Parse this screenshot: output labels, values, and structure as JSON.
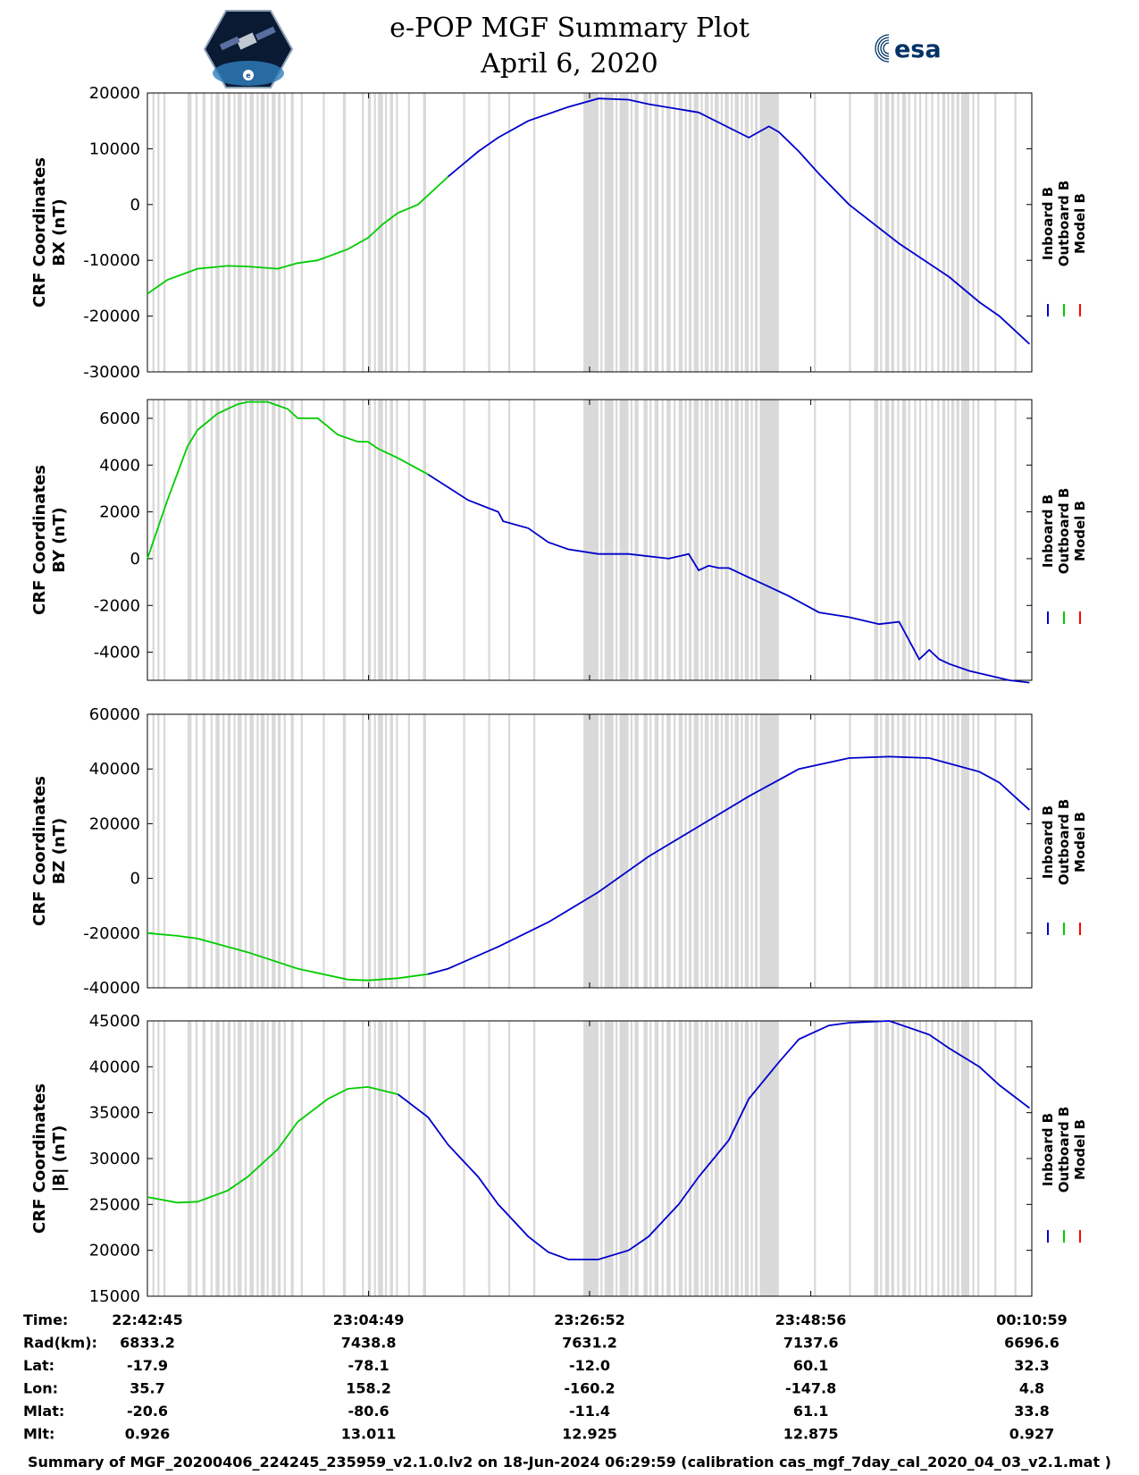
{
  "header": {
    "title_line1": "e-POP MGF Summary Plot",
    "title_line2": "April 6, 2020",
    "left_logo": "epop-satellite-logo",
    "right_logo_text": "esa"
  },
  "legend": [
    "Inboard B",
    "Outboard B",
    "Model B"
  ],
  "colors": {
    "inboard": "#0000cc",
    "outboard": "#00cc00",
    "model": "#ff0000",
    "shading": "#d9d9d9"
  },
  "chart_data": [
    {
      "type": "line",
      "ylabel": [
        "CRF Coordinates",
        "BX (nT)"
      ],
      "ylim": [
        -30000,
        20000
      ],
      "yticks": [
        20000,
        10000,
        0,
        -10000,
        -20000,
        -30000
      ],
      "x_minutes": [
        0,
        2,
        5,
        8,
        10,
        13,
        15,
        17,
        20,
        22,
        23.5,
        25,
        27,
        30,
        33,
        35,
        38,
        42,
        45,
        48,
        50,
        55,
        60,
        62,
        63,
        65,
        67,
        70,
        75,
        80,
        83,
        85,
        88
      ],
      "values": [
        -16000,
        -13500,
        -11500,
        -11000,
        -11100,
        -11500,
        -10500,
        -10000,
        -8000,
        -6000,
        -3500,
        -1500,
        0,
        5000,
        9500,
        12000,
        15000,
        17500,
        19000,
        18800,
        18000,
        16500,
        12000,
        14000,
        13000,
        9500,
        5500,
        0,
        -7000,
        -13000,
        -17500,
        -20000,
        -25000
      ],
      "outboard_until_minute": 32
    },
    {
      "type": "line",
      "ylabel": [
        "CRF Coordinates",
        "BY (nT)"
      ],
      "ylim": [
        -5200,
        6800
      ],
      "yticks": [
        6000,
        4000,
        2000,
        0,
        -2000,
        -4000
      ],
      "x_minutes": [
        0,
        2,
        4,
        5,
        7,
        9,
        10,
        12,
        14,
        15,
        17,
        19,
        21,
        22,
        23,
        25,
        28,
        32,
        35,
        35.5,
        38,
        40,
        42,
        45,
        48,
        52,
        54,
        55,
        56,
        57,
        58,
        60,
        62,
        64,
        67,
        70,
        73,
        75,
        77,
        78,
        79,
        80,
        82,
        84,
        86,
        88
      ],
      "values": [
        0,
        2500,
        4800,
        5500,
        6200,
        6600,
        6700,
        6700,
        6400,
        6000,
        6000,
        5300,
        5000,
        5000,
        4700,
        4300,
        3600,
        2500,
        2000,
        1600,
        1300,
        700,
        400,
        200,
        200,
        0,
        200,
        -500,
        -300,
        -400,
        -400,
        -800,
        -1200,
        -1600,
        -2300,
        -2500,
        -2800,
        -2700,
        -4300,
        -3900,
        -4300,
        -4500,
        -4800,
        -5000,
        -5200,
        -5300
      ],
      "outboard_until_minute": 30
    },
    {
      "type": "line",
      "ylabel": [
        "CRF Coordinates",
        "BZ (nT)"
      ],
      "ylim": [
        -40000,
        60000
      ],
      "yticks": [
        60000,
        40000,
        20000,
        0,
        -20000,
        -40000
      ],
      "x_minutes": [
        0,
        3,
        5,
        10,
        15,
        20,
        22,
        25,
        28,
        30,
        35,
        40,
        45,
        50,
        55,
        60,
        63,
        65,
        70,
        74,
        78,
        80,
        83,
        85,
        88
      ],
      "values": [
        -20000,
        -21000,
        -22000,
        -27000,
        -33000,
        -37000,
        -37300,
        -36500,
        -35000,
        -33000,
        -25000,
        -16000,
        -5000,
        8000,
        19000,
        30000,
        36000,
        40000,
        44000,
        44500,
        44000,
        42000,
        39000,
        35000,
        25000
      ],
      "outboard_until_minute": 28
    },
    {
      "type": "line",
      "ylabel": [
        "CRF Coordinates",
        "|B| (nT)"
      ],
      "ylim": [
        15000,
        45000
      ],
      "yticks": [
        45000,
        40000,
        35000,
        30000,
        25000,
        20000,
        15000
      ],
      "x_minutes": [
        0,
        3,
        5,
        8,
        10,
        13,
        15,
        18,
        20,
        22,
        25,
        28,
        30,
        33,
        35,
        38,
        40,
        42,
        45,
        48,
        50,
        53,
        55,
        58,
        60,
        63,
        65,
        68,
        70,
        74,
        78,
        80,
        83,
        85,
        88
      ],
      "values": [
        25800,
        25200,
        25300,
        26500,
        28000,
        31000,
        34000,
        36500,
        37600,
        37800,
        37000,
        34500,
        31500,
        28000,
        25000,
        21500,
        19800,
        19000,
        19000,
        20000,
        21500,
        25000,
        28000,
        32000,
        36500,
        40500,
        43000,
        44500,
        44800,
        45000,
        43500,
        42000,
        40000,
        38000,
        35500
      ],
      "outboard_until_minute": 25
    }
  ],
  "x_axis": {
    "range_minutes": [
      0,
      88.2333
    ],
    "tick_minutes": [
      0,
      22.0667,
      44.1167,
      66.1833,
      88.2333
    ]
  },
  "ephemeris": {
    "labels": [
      "Time:",
      "Rad(km):",
      "Lat:",
      "Lon:",
      "Mlat:",
      "Mlt:"
    ],
    "columns": [
      [
        "22:42:45",
        "6833.2",
        "-17.9",
        "35.7",
        "-20.6",
        "0.926"
      ],
      [
        "23:04:49",
        "7438.8",
        "-78.1",
        "158.2",
        "-80.6",
        "13.011"
      ],
      [
        "23:26:52",
        "7631.2",
        "-12.0",
        "-160.2",
        "-11.4",
        "12.925"
      ],
      [
        "23:48:56",
        "7137.6",
        "60.1",
        "-147.8",
        "61.1",
        "12.875"
      ],
      [
        "00:10:59",
        "6696.6",
        "32.3",
        "4.8",
        "33.8",
        "0.927"
      ]
    ]
  },
  "footer": "Summary of MGF_20200406_224245_235959_v2.1.0.lv2 on 18-Jun-2024 06:29:59 (calibration cas_mgf_7day_cal_2020_04_03_v2.1.mat )",
  "shading_bands": [
    [
      0.5,
      0.7
    ],
    [
      1.0,
      1.2
    ],
    [
      1.6,
      1.8
    ],
    [
      4.0,
      4.4
    ],
    [
      4.8,
      5.0
    ],
    [
      5.5,
      5.8
    ],
    [
      6.3,
      6.5
    ],
    [
      6.8,
      7.2
    ],
    [
      7.5,
      7.7
    ],
    [
      8.0,
      8.3
    ],
    [
      8.6,
      8.8
    ],
    [
      9.0,
      9.4
    ],
    [
      9.7,
      9.9
    ],
    [
      10.2,
      10.6
    ],
    [
      10.9,
      11.1
    ],
    [
      11.3,
      11.7
    ],
    [
      11.9,
      12.1
    ],
    [
      12.4,
      12.8
    ],
    [
      13.0,
      13.3
    ],
    [
      13.6,
      13.8
    ],
    [
      14.3,
      14.6
    ],
    [
      15.3,
      15.5
    ],
    [
      17.5,
      17.7
    ],
    [
      19.5,
      19.8
    ],
    [
      21.4,
      21.6
    ],
    [
      22.0,
      22.3
    ],
    [
      22.6,
      22.8
    ],
    [
      23.0,
      23.5
    ],
    [
      23.7,
      23.9
    ],
    [
      24.2,
      24.5
    ],
    [
      24.8,
      25.0
    ],
    [
      26.0,
      26.2
    ],
    [
      27.5,
      27.8
    ],
    [
      31.5,
      31.7
    ],
    [
      34.0,
      34.2
    ],
    [
      36.0,
      36.2
    ],
    [
      38.5,
      38.7
    ],
    [
      43.5,
      45.0
    ],
    [
      45.2,
      45.4
    ],
    [
      45.6,
      46.5
    ],
    [
      46.7,
      46.9
    ],
    [
      47.1,
      48.0
    ],
    [
      48.2,
      48.4
    ],
    [
      48.6,
      49.0
    ],
    [
      49.5,
      49.9
    ],
    [
      50.1,
      50.3
    ],
    [
      50.6,
      51.0
    ],
    [
      51.3,
      51.5
    ],
    [
      51.8,
      52.2
    ],
    [
      52.5,
      52.7
    ],
    [
      53.0,
      53.4
    ],
    [
      53.6,
      53.8
    ],
    [
      54.0,
      54.3
    ],
    [
      54.5,
      55.0
    ],
    [
      55.2,
      55.4
    ],
    [
      55.6,
      56.0
    ],
    [
      56.2,
      56.4
    ],
    [
      56.6,
      57.0
    ],
    [
      57.2,
      57.4
    ],
    [
      57.6,
      58.0
    ],
    [
      58.2,
      58.4
    ],
    [
      58.6,
      59.0
    ],
    [
      59.2,
      59.4
    ],
    [
      59.6,
      60.0
    ],
    [
      60.2,
      60.4
    ],
    [
      60.6,
      60.9
    ],
    [
      61.1,
      63.0
    ],
    [
      66.5,
      66.7
    ],
    [
      70.0,
      70.2
    ],
    [
      72.5,
      72.9
    ],
    [
      73.1,
      73.3
    ],
    [
      73.6,
      74.0
    ],
    [
      74.2,
      74.5
    ],
    [
      74.8,
      75.0
    ],
    [
      75.3,
      75.7
    ],
    [
      75.9,
      76.1
    ],
    [
      76.5,
      76.7
    ],
    [
      77.0,
      77.2
    ],
    [
      77.6,
      77.8
    ],
    [
      78.2,
      78.4
    ],
    [
      78.8,
      79.0
    ],
    [
      79.3,
      79.6
    ],
    [
      79.8,
      80.0
    ],
    [
      80.2,
      80.5
    ],
    [
      80.7,
      81.0
    ],
    [
      81.2,
      82.0
    ],
    [
      82.3,
      82.5
    ],
    [
      82.8,
      83.0
    ],
    [
      84.5,
      84.7
    ],
    [
      86.5,
      86.7
    ]
  ]
}
